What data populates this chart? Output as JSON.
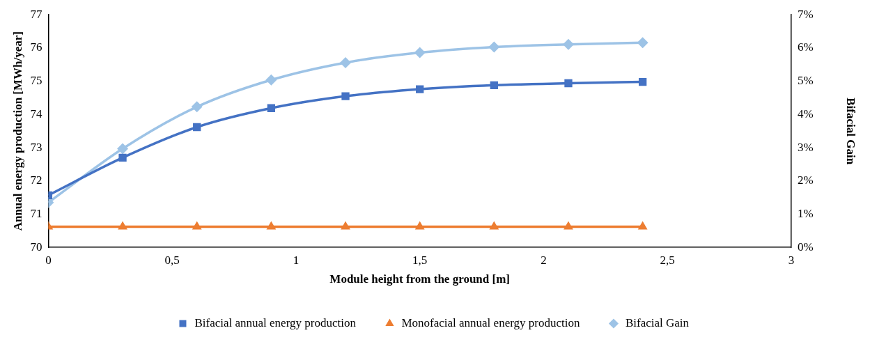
{
  "chart_data": {
    "type": "line",
    "xlabel": "Module height from the ground [m]",
    "ylabel": "Annual energy production [MWh/year]",
    "y2label": "Bifacial Gain",
    "x": [
      0,
      0.3,
      0.6,
      0.9,
      1.2,
      1.5,
      1.8,
      2.1,
      2.4
    ],
    "xlim": [
      0,
      3
    ],
    "xticks": [
      0,
      {
        "value": 0.5,
        "label": "0,5"
      },
      1,
      {
        "value": 1.5,
        "label": "1,5"
      },
      2,
      {
        "value": 2.5,
        "label": "2,5"
      },
      3
    ],
    "ylim": [
      70,
      77
    ],
    "yticks": [
      70,
      71,
      72,
      73,
      74,
      75,
      76,
      77
    ],
    "y2lim": [
      0,
      7
    ],
    "y2ticks": [
      {
        "value": 0,
        "label": "0%"
      },
      {
        "value": 1,
        "label": "1%"
      },
      {
        "value": 2,
        "label": "2%"
      },
      {
        "value": 3,
        "label": "3%"
      },
      {
        "value": 4,
        "label": "4%"
      },
      {
        "value": 5,
        "label": "5%"
      },
      {
        "value": 6,
        "label": "6%"
      },
      {
        "value": 7,
        "label": "7%"
      }
    ],
    "grid": false,
    "legend": "bottom",
    "series": [
      {
        "name": "Bifacial annual energy production",
        "color": "#4472c4",
        "marker": "square",
        "values": [
          71.57,
          72.7,
          73.62,
          74.19,
          74.55,
          74.76,
          74.88,
          74.94,
          74.98
        ]
      },
      {
        "name": "Monofacial annual energy production",
        "color": "#ed7d31",
        "marker": "triangle",
        "values": [
          70.62,
          70.62,
          70.62,
          70.62,
          70.62,
          70.62,
          70.62,
          70.62,
          70.62
        ]
      },
      {
        "name": "Bifacial Gain",
        "color": "#9dc3e6",
        "marker": "diamond",
        "axis": "y2",
        "values": [
          1.35,
          2.97,
          4.23,
          5.04,
          5.56,
          5.86,
          6.03,
          6.11,
          6.16
        ]
      }
    ]
  }
}
